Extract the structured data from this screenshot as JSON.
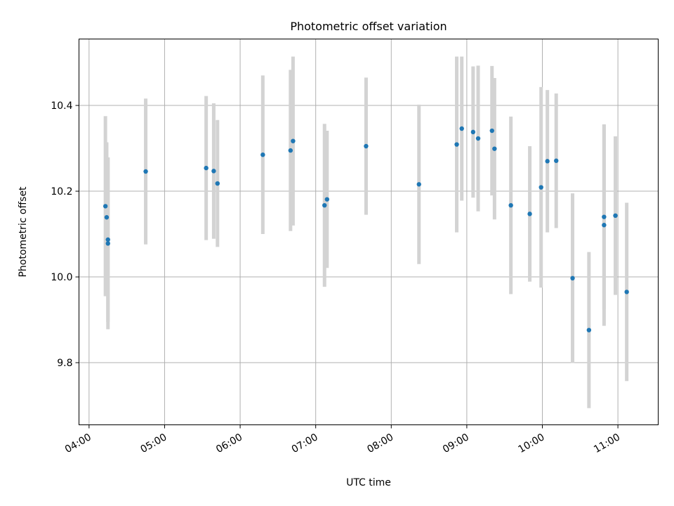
{
  "chart_data": {
    "type": "scatter",
    "title": "Photometric offset variation",
    "xlabel": "UTC time",
    "ylabel": "Photometric offset",
    "x_ticks": [
      "04:00",
      "05:00",
      "06:00",
      "07:00",
      "08:00",
      "09:00",
      "10:00",
      "11:00"
    ],
    "y_ticks": [
      "9.8",
      "10.0",
      "10.2",
      "10.4"
    ],
    "xlim": [
      "03:52",
      "11:32"
    ],
    "ylim": [
      9.655,
      10.555
    ],
    "grid": true,
    "marker_color": "#1f77b4",
    "errorbar_color": "#d3d3d3",
    "points": [
      {
        "x": "04:13",
        "y": 10.165,
        "yerr": 0.21
      },
      {
        "x": "04:14",
        "y": 10.139,
        "yerr": 0.175
      },
      {
        "x": "04:15",
        "y": 10.078,
        "yerr": 0.2
      },
      {
        "x": "04:15",
        "y": 10.087,
        "yerr": 0.192
      },
      {
        "x": "04:45",
        "y": 10.246,
        "yerr": 0.17
      },
      {
        "x": "05:33",
        "y": 10.254,
        "yerr": 0.168
      },
      {
        "x": "05:39",
        "y": 10.247,
        "yerr": 0.158
      },
      {
        "x": "05:42",
        "y": 10.218,
        "yerr": 0.148
      },
      {
        "x": "06:18",
        "y": 10.285,
        "yerr": 0.185
      },
      {
        "x": "06:40",
        "y": 10.295,
        "yerr": 0.188
      },
      {
        "x": "06:42",
        "y": 10.317,
        "yerr": 0.197
      },
      {
        "x": "07:07",
        "y": 10.167,
        "yerr": 0.19
      },
      {
        "x": "07:09",
        "y": 10.181,
        "yerr": 0.16
      },
      {
        "x": "07:40",
        "y": 10.305,
        "yerr": 0.16
      },
      {
        "x": "08:22",
        "y": 10.216,
        "yerr": 0.186
      },
      {
        "x": "08:52",
        "y": 10.309,
        "yerr": 0.205
      },
      {
        "x": "08:56",
        "y": 10.346,
        "yerr": 0.168
      },
      {
        "x": "09:05",
        "y": 10.338,
        "yerr": 0.153
      },
      {
        "x": "09:09",
        "y": 10.323,
        "yerr": 0.17
      },
      {
        "x": "09:20",
        "y": 10.341,
        "yerr": 0.151
      },
      {
        "x": "09:22",
        "y": 10.299,
        "yerr": 0.165
      },
      {
        "x": "09:35",
        "y": 10.167,
        "yerr": 0.207
      },
      {
        "x": "09:50",
        "y": 10.147,
        "yerr": 0.158
      },
      {
        "x": "09:59",
        "y": 10.209,
        "yerr": 0.234
      },
      {
        "x": "10:04",
        "y": 10.27,
        "yerr": 0.166
      },
      {
        "x": "10:11",
        "y": 10.271,
        "yerr": 0.157
      },
      {
        "x": "10:24",
        "y": 9.997,
        "yerr": 0.198
      },
      {
        "x": "10:37",
        "y": 9.876,
        "yerr": 0.182
      },
      {
        "x": "10:49",
        "y": 10.121,
        "yerr": 0.235
      },
      {
        "x": "10:49",
        "y": 10.14,
        "yerr": 0.215
      },
      {
        "x": "10:58",
        "y": 10.143,
        "yerr": 0.185
      },
      {
        "x": "11:07",
        "y": 9.965,
        "yerr": 0.208
      }
    ]
  }
}
